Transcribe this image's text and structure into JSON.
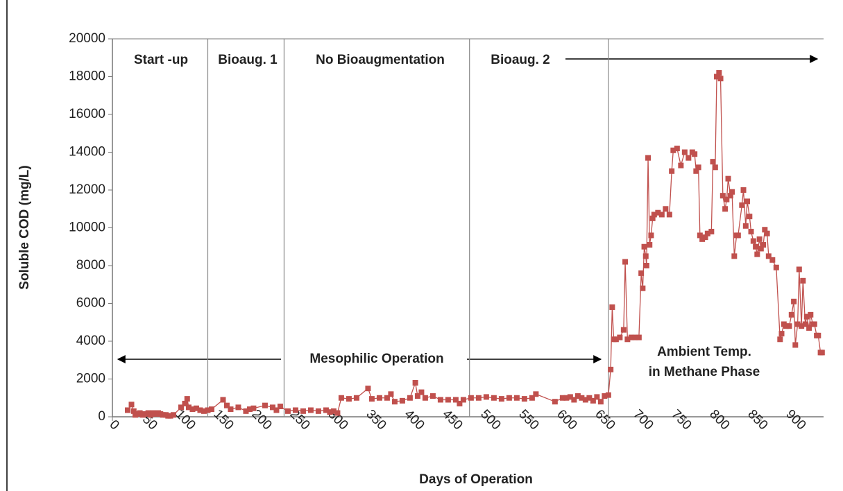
{
  "chart_data": {
    "type": "line",
    "x_label": "Days of Operation",
    "y_label": "Soluble COD (mg/L)",
    "xlim": [
      0,
      932
    ],
    "ylim": [
      0,
      20000
    ],
    "xticks": [
      0,
      50,
      100,
      150,
      200,
      250,
      300,
      350,
      400,
      450,
      500,
      550,
      600,
      650,
      700,
      750,
      800,
      850,
      900
    ],
    "yticks": [
      0,
      2000,
      4000,
      6000,
      8000,
      10000,
      12000,
      14000,
      16000,
      18000,
      20000
    ],
    "phase_dividers": [
      125,
      225,
      468,
      650
    ],
    "annotations": [
      "Start -up",
      "Bioaug. 1",
      "No Bioaugmentation",
      "Bioaug. 2",
      "Mesophilic Operation",
      "Ambient Temp.",
      "in Methane Phase"
    ],
    "series": [
      {
        "color": "#c0504d",
        "x": [
          20,
          25,
          28,
          30,
          33,
          36,
          40,
          43,
          47,
          50,
          53,
          57,
          60,
          63,
          66,
          70,
          73,
          76,
          80,
          90,
          95,
          98,
          100,
          105,
          110,
          115,
          120,
          125,
          130,
          145,
          150,
          155,
          165,
          175,
          180,
          185,
          200,
          210,
          215,
          220,
          230,
          240,
          250,
          260,
          270,
          280,
          285,
          290,
          295,
          300,
          310,
          320,
          335,
          340,
          350,
          360,
          365,
          370,
          380,
          390,
          397,
          400,
          405,
          410,
          420,
          430,
          440,
          450,
          455,
          460,
          470,
          480,
          490,
          500,
          510,
          520,
          530,
          540,
          550,
          555,
          580,
          590,
          595,
          600,
          605,
          610,
          615,
          620,
          625,
          630,
          635,
          640,
          645,
          650,
          653,
          655,
          657,
          660,
          665,
          670,
          672,
          675,
          680,
          685,
          690,
          693,
          695,
          697,
          699,
          700,
          702,
          704,
          706,
          708,
          710,
          715,
          720,
          725,
          730,
          733,
          735,
          740,
          745,
          750,
          755,
          760,
          763,
          765,
          768,
          770,
          773,
          777,
          780,
          785,
          787,
          790,
          792,
          795,
          797,
          800,
          803,
          805,
          807,
          810,
          812,
          815,
          818,
          820,
          825,
          827,
          830,
          832,
          835,
          837,
          840,
          843,
          845,
          848,
          850,
          853,
          855,
          858,
          860,
          865,
          870,
          875,
          877,
          880,
          883,
          887,
          890,
          893,
          895,
          898,
          900,
          903,
          905,
          908,
          910,
          913,
          915,
          918,
          920,
          923,
          925,
          928,
          930
        ],
        "values": [
          350,
          650,
          300,
          100,
          150,
          200,
          100,
          150,
          200,
          100,
          200,
          150,
          200,
          150,
          100,
          100,
          50,
          50,
          100,
          500,
          700,
          950,
          500,
          400,
          450,
          350,
          300,
          350,
          400,
          900,
          600,
          400,
          500,
          300,
          400,
          450,
          600,
          500,
          350,
          550,
          300,
          350,
          300,
          350,
          300,
          350,
          250,
          300,
          200,
          1000,
          950,
          1000,
          1500,
          950,
          1000,
          1000,
          1200,
          800,
          850,
          1000,
          1800,
          1100,
          1300,
          1000,
          1100,
          900,
          900,
          900,
          700,
          900,
          1000,
          1000,
          1050,
          1000,
          950,
          1000,
          1000,
          950,
          1000,
          1200,
          800,
          1000,
          1000,
          1050,
          900,
          1100,
          1000,
          900,
          1000,
          850,
          1050,
          800,
          1100,
          1150,
          2500,
          5800,
          4100,
          4100,
          4200,
          4600,
          8200,
          4100,
          4200,
          4200,
          4200,
          7600,
          6800,
          9000,
          8500,
          8000,
          13700,
          9100,
          9600,
          10500,
          10700,
          10800,
          10700,
          11000,
          10700,
          13000,
          14100,
          14200,
          13300,
          14000,
          13700,
          14000,
          13900,
          13000,
          13200,
          9600,
          9400,
          9500,
          9700,
          9800,
          13500,
          13200,
          18000,
          18200,
          17900,
          11700,
          11000,
          11500,
          12600,
          11700,
          11900,
          8500,
          9600,
          9600,
          11200,
          12000,
          10100,
          11400,
          10600,
          9800,
          9300,
          9000,
          8600,
          9400,
          8900,
          9100,
          9900,
          9700,
          8500,
          8300,
          7900,
          4100,
          4400,
          4900,
          4800,
          4800,
          5400,
          6100,
          3800,
          4900,
          7800,
          4800,
          7200,
          4900,
          5300,
          4700,
          5400,
          4900,
          4900,
          4300,
          4300,
          3400,
          3400
        ]
      }
    ]
  }
}
